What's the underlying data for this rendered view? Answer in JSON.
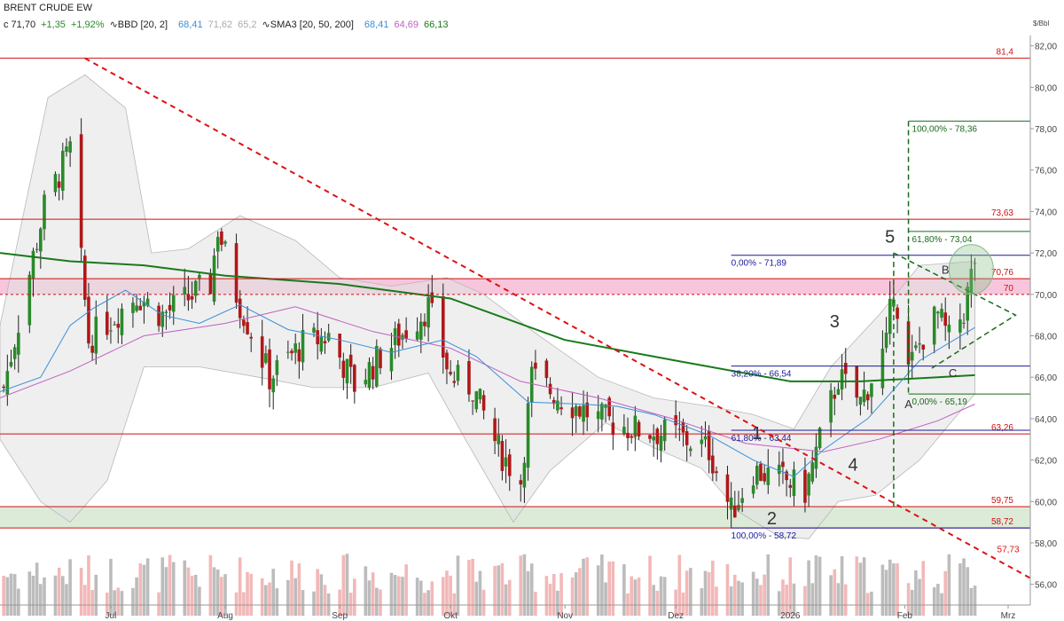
{
  "header": {
    "title": "BRENT CRUDE EW",
    "price_label": "c 71,70",
    "change_abs": "+1,35",
    "change_pct": "+1,92%",
    "bbd_label": "BBD [20, 2]",
    "bbd_values": [
      "68,41",
      "71,62",
      "65,2"
    ],
    "sma_label": "SMA3 [20, 50, 200]",
    "sma_values": [
      "68,41",
      "64,69",
      "66,13"
    ]
  },
  "colors": {
    "up": "#2a8a2a",
    "down": "#b01818",
    "sma20": "#3a8fd8",
    "sma50": "#c060c0",
    "sma200": "#1a7a1a",
    "hline": "#cc1111",
    "fib_blue": "#1a1a9a",
    "fib_green": "#1a6a1a",
    "trend_red": "#dd1111"
  },
  "chart_data": {
    "type": "candlestick",
    "title": "BRENT CRUDE EW",
    "unit_label": "$/Bbl",
    "ylim": [
      55,
      82.5
    ],
    "yticks": [
      56,
      58,
      60,
      62,
      64,
      66,
      68,
      70,
      72,
      74,
      76,
      78,
      80,
      82
    ],
    "ytick_labels": [
      "56,00",
      "58,00",
      "60,00",
      "62,00",
      "64,00",
      "66,00",
      "68,00",
      "70,00",
      "72,00",
      "74,00",
      "76,00",
      "78,00",
      "80,00",
      "82,00"
    ],
    "x_domain": [
      "2025-06-01",
      "2026-03-07"
    ],
    "xticks": [
      {
        "date": "2025-07-01",
        "label": "Jul"
      },
      {
        "date": "2025-08-01",
        "label": "Aug"
      },
      {
        "date": "2025-09-01",
        "label": "Sep"
      },
      {
        "date": "2025-10-01",
        "label": "Okt"
      },
      {
        "date": "2025-11-01",
        "label": "Nov"
      },
      {
        "date": "2025-12-01",
        "label": "Dez"
      },
      {
        "date": "2026-01-01",
        "label": "2026"
      },
      {
        "date": "2026-02-01",
        "label": "Feb"
      },
      {
        "date": "2026-03-01",
        "label": "Mrz"
      }
    ],
    "close_anchors": [
      {
        "date": "2025-06-02",
        "v": 65.5
      },
      {
        "date": "2025-06-13",
        "v": 74.2
      },
      {
        "date": "2025-06-20",
        "v": 77.0
      },
      {
        "date": "2025-06-23",
        "v": 71.5
      },
      {
        "date": "2025-06-25",
        "v": 67.8
      },
      {
        "date": "2025-07-08",
        "v": 70.0
      },
      {
        "date": "2025-07-15",
        "v": 69.0
      },
      {
        "date": "2025-07-28",
        "v": 70.5
      },
      {
        "date": "2025-07-30",
        "v": 73.2
      },
      {
        "date": "2025-08-04",
        "v": 70.0
      },
      {
        "date": "2025-08-13",
        "v": 66.0
      },
      {
        "date": "2025-08-22",
        "v": 67.6
      },
      {
        "date": "2025-08-29",
        "v": 68.0
      },
      {
        "date": "2025-09-05",
        "v": 65.6
      },
      {
        "date": "2025-09-12",
        "v": 67.0
      },
      {
        "date": "2025-09-25",
        "v": 69.4
      },
      {
        "date": "2025-10-01",
        "v": 66.0
      },
      {
        "date": "2025-10-07",
        "v": 65.5
      },
      {
        "date": "2025-10-14",
        "v": 62.5
      },
      {
        "date": "2025-10-20",
        "v": 61.0
      },
      {
        "date": "2025-10-23",
        "v": 66.0
      },
      {
        "date": "2025-10-31",
        "v": 65.0
      },
      {
        "date": "2025-11-10",
        "v": 64.0
      },
      {
        "date": "2025-11-20",
        "v": 63.5
      },
      {
        "date": "2025-12-01",
        "v": 63.2
      },
      {
        "date": "2025-12-10",
        "v": 62.5
      },
      {
        "date": "2025-12-16",
        "v": 59.5
      },
      {
        "date": "2025-12-22",
        "v": 61.5
      },
      {
        "date": "2025-12-31",
        "v": 61.0
      },
      {
        "date": "2026-01-05",
        "v": 60.5
      },
      {
        "date": "2026-01-14",
        "v": 66.0
      },
      {
        "date": "2026-01-20",
        "v": 64.8
      },
      {
        "date": "2026-01-27",
        "v": 67.5
      },
      {
        "date": "2026-01-29",
        "v": 70.5
      },
      {
        "date": "2026-02-02",
        "v": 66.3
      },
      {
        "date": "2026-02-06",
        "v": 68.0
      },
      {
        "date": "2026-02-10",
        "v": 69.0
      },
      {
        "date": "2026-02-13",
        "v": 67.8
      },
      {
        "date": "2026-02-17",
        "v": 69.2
      },
      {
        "date": "2026-02-20",
        "v": 71.7
      }
    ],
    "sma20": [
      [
        "2025-06-01",
        65.3
      ],
      [
        "2025-06-12",
        66.0
      ],
      [
        "2025-06-20",
        68.5
      ],
      [
        "2025-06-26",
        69.3
      ],
      [
        "2025-07-05",
        70.2
      ],
      [
        "2025-07-15",
        69.0
      ],
      [
        "2025-07-25",
        68.6
      ],
      [
        "2025-08-05",
        69.5
      ],
      [
        "2025-08-18",
        68.3
      ],
      [
        "2025-09-01",
        67.8
      ],
      [
        "2025-09-15",
        67.2
      ],
      [
        "2025-09-29",
        67.8
      ],
      [
        "2025-10-08",
        67.0
      ],
      [
        "2025-10-22",
        64.8
      ],
      [
        "2025-11-05",
        64.7
      ],
      [
        "2025-11-15",
        64.6
      ],
      [
        "2025-11-25",
        64.2
      ],
      [
        "2025-12-10",
        63.2
      ],
      [
        "2025-12-22",
        62.0
      ],
      [
        "2026-01-02",
        61.2
      ],
      [
        "2026-01-10",
        62.5
      ],
      [
        "2026-01-22",
        64.0
      ],
      [
        "2026-02-05",
        66.8
      ],
      [
        "2026-02-20",
        68.4
      ]
    ],
    "sma50": [
      [
        "2025-06-01",
        65.0
      ],
      [
        "2025-06-20",
        66.3
      ],
      [
        "2025-07-10",
        68.0
      ],
      [
        "2025-08-01",
        68.6
      ],
      [
        "2025-08-20",
        69.4
      ],
      [
        "2025-09-10",
        68.2
      ],
      [
        "2025-10-01",
        67.4
      ],
      [
        "2025-10-20",
        65.8
      ],
      [
        "2025-11-10",
        65.0
      ],
      [
        "2025-11-30",
        64.0
      ],
      [
        "2025-12-20",
        62.8
      ],
      [
        "2026-01-10",
        62.4
      ],
      [
        "2026-01-25",
        63.0
      ],
      [
        "2026-02-10",
        63.9
      ],
      [
        "2026-02-20",
        64.7
      ]
    ],
    "sma200": [
      [
        "2025-06-01",
        72.0
      ],
      [
        "2025-06-20",
        71.6
      ],
      [
        "2025-07-10",
        71.4
      ],
      [
        "2025-08-01",
        70.9
      ],
      [
        "2025-09-01",
        70.5
      ],
      [
        "2025-10-01",
        69.8
      ],
      [
        "2025-11-01",
        67.8
      ],
      [
        "2025-12-01",
        66.8
      ],
      [
        "2026-01-01",
        65.8
      ],
      [
        "2026-01-20",
        65.8
      ],
      [
        "2026-02-10",
        66.0
      ],
      [
        "2026-02-20",
        66.1
      ]
    ],
    "bollinger": {
      "upper": [
        [
          "2025-06-01",
          68.5
        ],
        [
          "2025-06-14",
          79.5
        ],
        [
          "2025-06-24",
          80.6
        ],
        [
          "2025-07-05",
          79.0
        ],
        [
          "2025-07-12",
          72.0
        ],
        [
          "2025-07-22",
          72.2
        ],
        [
          "2025-08-05",
          73.8
        ],
        [
          "2025-08-20",
          72.6
        ],
        [
          "2025-09-01",
          70.8
        ],
        [
          "2025-09-15",
          70.4
        ],
        [
          "2025-09-30",
          70.8
        ],
        [
          "2025-10-10",
          70.0
        ],
        [
          "2025-10-25",
          68.0
        ],
        [
          "2025-11-10",
          66.0
        ],
        [
          "2025-11-25",
          65.0
        ],
        [
          "2025-12-10",
          64.6
        ],
        [
          "2025-12-22",
          64.2
        ],
        [
          "2026-01-02",
          63.5
        ],
        [
          "2026-01-12",
          66.5
        ],
        [
          "2026-01-25",
          69.0
        ],
        [
          "2026-02-05",
          71.4
        ],
        [
          "2026-02-20",
          71.6
        ]
      ],
      "lower": [
        [
          "2025-06-01",
          63.0
        ],
        [
          "2025-06-12",
          60.0
        ],
        [
          "2025-06-20",
          59.0
        ],
        [
          "2025-06-30",
          61.0
        ],
        [
          "2025-07-10",
          66.5
        ],
        [
          "2025-07-25",
          66.5
        ],
        [
          "2025-08-10",
          66.0
        ],
        [
          "2025-08-25",
          65.5
        ],
        [
          "2025-09-10",
          65.5
        ],
        [
          "2025-09-25",
          66.2
        ],
        [
          "2025-10-05",
          63.0
        ],
        [
          "2025-10-18",
          59.0
        ],
        [
          "2025-10-28",
          61.5
        ],
        [
          "2025-11-12",
          63.8
        ],
        [
          "2025-11-25",
          62.6
        ],
        [
          "2025-12-08",
          61.6
        ],
        [
          "2025-12-18",
          59.5
        ],
        [
          "2025-12-29",
          58.3
        ],
        [
          "2026-01-06",
          58.2
        ],
        [
          "2026-01-14",
          60.0
        ],
        [
          "2026-01-24",
          60.3
        ],
        [
          "2026-02-05",
          62.0
        ],
        [
          "2026-02-20",
          65.2
        ]
      ]
    },
    "horizontal_levels": [
      {
        "value": 81.4,
        "label": "81,4"
      },
      {
        "value": 73.63,
        "label": "73,63"
      },
      {
        "value": 70.76,
        "label": "70,76"
      },
      {
        "value": 70.0,
        "label": "70",
        "dashed": true
      },
      {
        "value": 63.26,
        "label": "63,26"
      },
      {
        "value": 59.75,
        "label": "59,75"
      },
      {
        "value": 58.72,
        "label": "58,72"
      }
    ],
    "zones": [
      {
        "from": 70.0,
        "to": 70.76,
        "color": "#f7c6dc"
      },
      {
        "from": 58.72,
        "to": 59.75,
        "color": "#dcebd8"
      }
    ],
    "fib_blue": {
      "start": "2025-12-16",
      "end": "2026-03-07",
      "levels": [
        {
          "value": 71.89,
          "label": "0,00% - 71,89"
        },
        {
          "value": 66.54,
          "label": "38,20% - 66,54"
        },
        {
          "value": 63.44,
          "label": "61,80% - 63,44"
        },
        {
          "value": 58.72,
          "label": "100,00% - 58,72"
        }
      ]
    },
    "fib_green": {
      "start": "2026-02-02",
      "end": "2026-03-07",
      "levels": [
        {
          "value": 78.36,
          "label": "100,00% - 78,36"
        },
        {
          "value": 73.04,
          "label": "61,80% - 73,04"
        },
        {
          "value": 65.19,
          "label": "0,00% - 65,19"
        }
      ]
    },
    "trendline_red": {
      "from": {
        "date": "2025-06-24",
        "v": 81.4
      },
      "to": {
        "date": "2026-03-07",
        "v": 56.3
      },
      "label": "57,73",
      "label_at": "2026-02-26"
    },
    "wave_labels": [
      {
        "text": "5",
        "date": "2026-01-28",
        "v": 72.5,
        "size": "big"
      },
      {
        "text": "3",
        "date": "2026-01-13",
        "v": 68.4,
        "size": "big"
      },
      {
        "text": "1",
        "date": "2025-12-23",
        "v": 63.0,
        "size": "big"
      },
      {
        "text": "4",
        "date": "2026-01-18",
        "v": 61.5,
        "size": "big"
      },
      {
        "text": "2",
        "date": "2025-12-27",
        "v": 58.9,
        "size": "big"
      },
      {
        "text": "B",
        "date": "2026-02-12",
        "v": 71.0,
        "size": "small"
      },
      {
        "text": "A",
        "date": "2026-02-02",
        "v": 64.5,
        "size": "small"
      },
      {
        "text": "C",
        "date": "2026-02-14",
        "v": 66.0,
        "size": "small"
      }
    ]
  }
}
